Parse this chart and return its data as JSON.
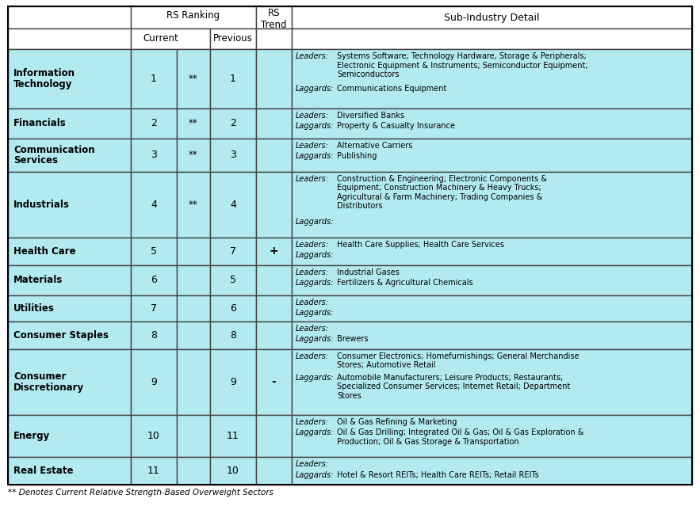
{
  "title_note": "** Denotes Current Relative Strength-Based Overweight Sectors",
  "row_bg": "#b2eaf0",
  "white_bg": "#ffffff",
  "border_col": "#444444",
  "inner_col": "#888888",
  "rows": [
    {
      "sector": "Information\nTechnology",
      "current": "1",
      "current_star": "**",
      "previous": "1",
      "trend": "",
      "leaders": "Systems Software; Technology Hardware, Storage & Peripherals;\nElectronic Equipment & Instruments; Semiconductor Equipment;\nSemiconductors",
      "laggards": "Communications Equipment"
    },
    {
      "sector": "Financials",
      "current": "2",
      "current_star": "**",
      "previous": "2",
      "trend": "",
      "leaders": "Diversified Banks",
      "laggards": "Property & Casualty Insurance"
    },
    {
      "sector": "Communication\nServices",
      "current": "3",
      "current_star": "**",
      "previous": "3",
      "trend": "",
      "leaders": "Alternative Carriers",
      "laggards": "Publishing"
    },
    {
      "sector": "Industrials",
      "current": "4",
      "current_star": "**",
      "previous": "4",
      "trend": "",
      "leaders": "Construction & Engineering; Electronic Components &\nEquipment; Construction Machinery & Heavy Trucks;\nAgricultural & Farm Machinery; Trading Companies &\nDistributors",
      "laggards": ""
    },
    {
      "sector": "Health Care",
      "current": "5",
      "current_star": "",
      "previous": "7",
      "trend": "+",
      "leaders": "Health Care Supplies; Health Care Services",
      "laggards": ""
    },
    {
      "sector": "Materials",
      "current": "6",
      "current_star": "",
      "previous": "5",
      "trend": "",
      "leaders": "Industrial Gases",
      "laggards": "Fertilizers & Agricultural Chemicals"
    },
    {
      "sector": "Utilities",
      "current": "7",
      "current_star": "",
      "previous": "6",
      "trend": "",
      "leaders": "",
      "laggards": ""
    },
    {
      "sector": "Consumer Staples",
      "current": "8",
      "current_star": "",
      "previous": "8",
      "trend": "",
      "leaders": "",
      "laggards": "Brewers"
    },
    {
      "sector": "Consumer\nDiscretionary",
      "current": "9",
      "current_star": "",
      "previous": "9",
      "trend": "-",
      "leaders": "Consumer Electronics; Homefurnishings; General Merchandise\nStores; Automotive Retail",
      "laggards": "Automobile Manufacturers; Leisure Products; Restaurants;\nSpecialized Consumer Services; Internet Retail; Department\nStores"
    },
    {
      "sector": "Energy",
      "current": "10",
      "current_star": "",
      "previous": "11",
      "trend": "",
      "leaders": "Oil & Gas Refining & Marketing",
      "laggards": "Oil & Gas Drilling; Integrated Oil & Gas; Oil & Gas Exploration &\nProduction; Oil & Gas Storage & Transportation"
    },
    {
      "sector": "Real Estate",
      "current": "11",
      "current_star": "",
      "previous": "10",
      "trend": "",
      "leaders": "",
      "laggards": "Hotel & Resort REITs; Health Care REITs; Retail REITs"
    }
  ]
}
